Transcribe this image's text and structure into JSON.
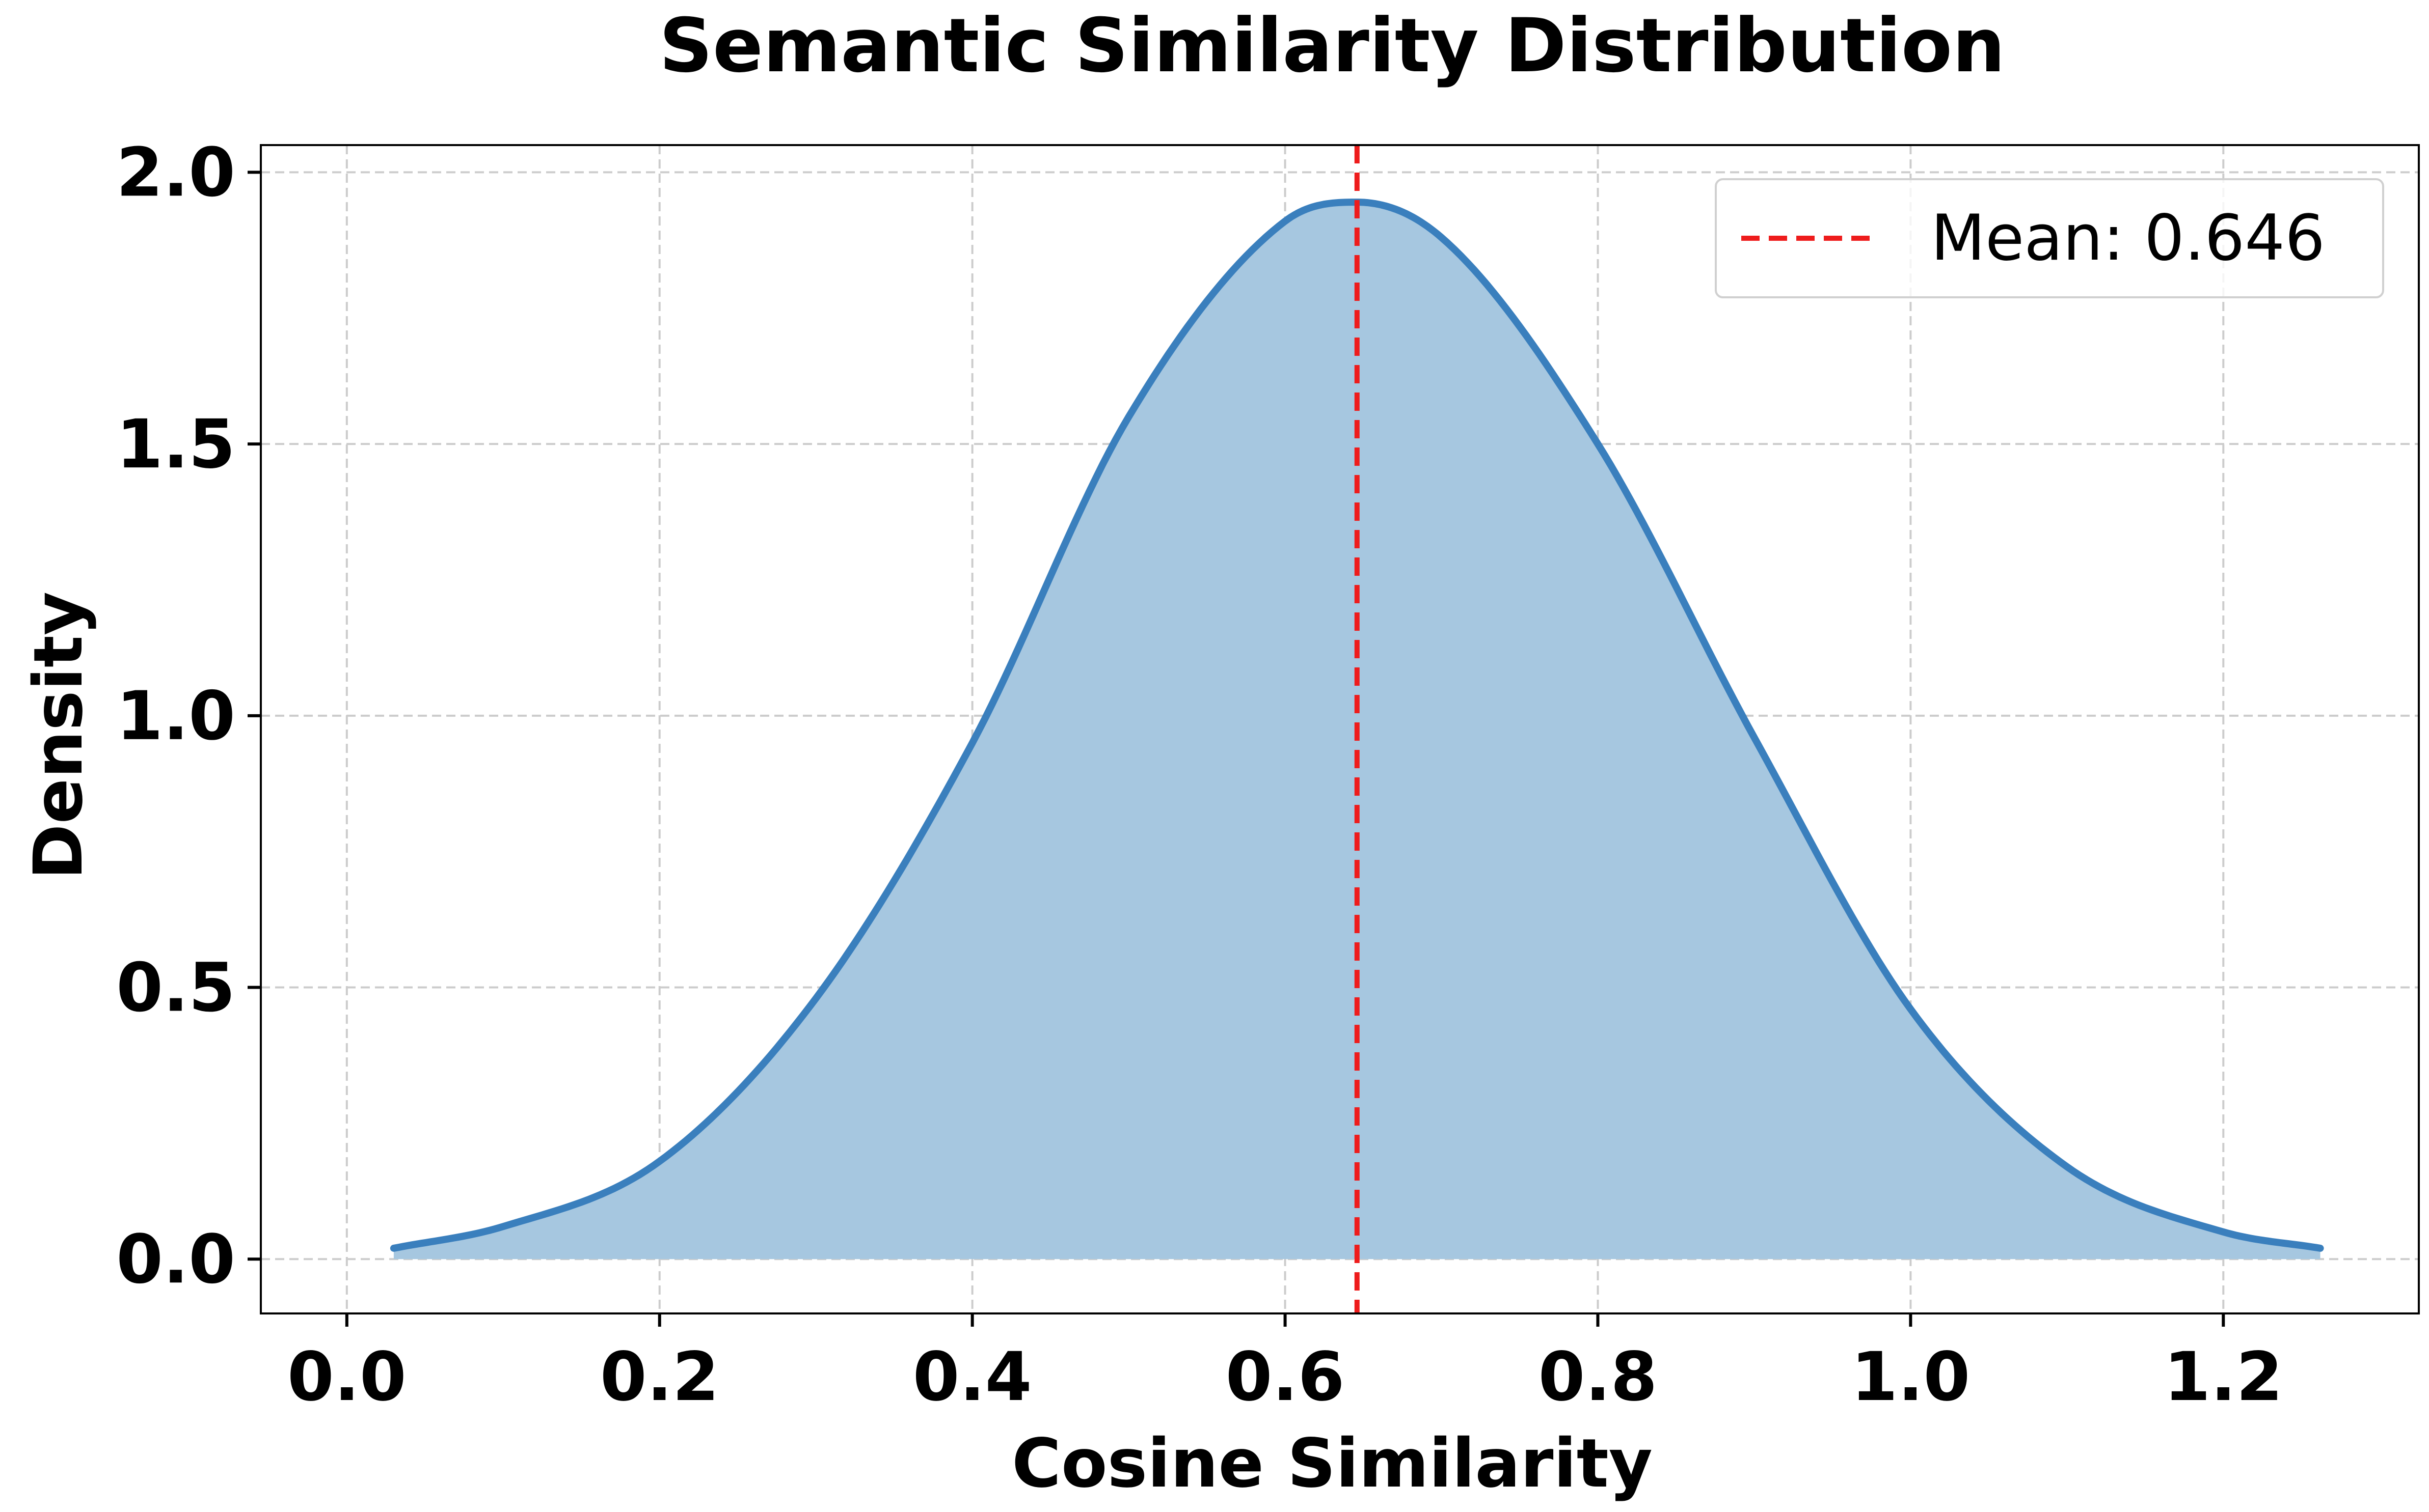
{
  "chart_data": {
    "type": "area",
    "title": "Semantic Similarity Distribution",
    "xlabel": "Cosine Similarity",
    "ylabel": "Density",
    "xlim": [
      -0.055,
      1.325
    ],
    "ylim": [
      -0.1,
      2.05
    ],
    "x_ticks": [
      0.0,
      0.2,
      0.4,
      0.6,
      0.8,
      1.0,
      1.2
    ],
    "x_tick_labels": [
      "0.0",
      "0.2",
      "0.4",
      "0.6",
      "0.8",
      "1.0",
      "1.2"
    ],
    "y_ticks": [
      0.0,
      0.5,
      1.0,
      1.5,
      2.0
    ],
    "y_tick_labels": [
      "0.0",
      "0.5",
      "1.0",
      "1.5",
      "2.0"
    ],
    "grid": true,
    "legend_position": "top-right",
    "series": [
      {
        "kind": "density-curve",
        "x": [
          0.03,
          0.1,
          0.2,
          0.3,
          0.4,
          0.5,
          0.6,
          0.646,
          0.7,
          0.8,
          0.9,
          1.0,
          1.1,
          1.2,
          1.262
        ],
        "y": [
          0.02,
          0.06,
          0.18,
          0.48,
          0.95,
          1.55,
          1.91,
          1.945,
          1.88,
          1.5,
          0.96,
          0.46,
          0.17,
          0.05,
          0.02
        ],
        "line_color": "#3a7fbd",
        "fill_color": "#a6c7e0"
      }
    ],
    "annotations": [
      {
        "kind": "vertical-line",
        "x": 0.646,
        "label": "Mean: 0.646",
        "color": "#ee1c1c",
        "style": "dashed"
      }
    ]
  }
}
